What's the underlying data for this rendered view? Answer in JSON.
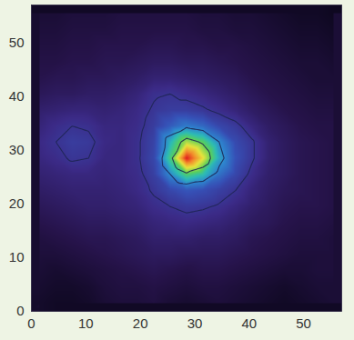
{
  "chart_data": {
    "type": "heatmap",
    "x": [
      1.5,
      4.5,
      7.5,
      10.5,
      13.5,
      16.5,
      19.5,
      22.5,
      25.5,
      28.5,
      31.5,
      34.5,
      37.5,
      40.5,
      43.5,
      46.5,
      49.5,
      52.5,
      55.5
    ],
    "y": [
      1.5,
      4.5,
      7.5,
      10.5,
      13.5,
      16.5,
      19.5,
      22.5,
      25.5,
      28.5,
      31.5,
      34.5,
      37.5,
      40.5,
      43.5,
      46.5,
      49.5,
      52.5,
      55.5
    ],
    "z": [
      [
        6,
        5,
        5,
        6,
        8,
        9,
        9,
        10,
        8,
        7,
        8,
        9,
        8,
        7,
        6,
        5,
        6,
        7,
        8
      ],
      [
        7,
        6,
        6,
        7,
        9,
        10,
        10,
        11,
        10,
        9,
        10,
        10,
        9,
        8,
        7,
        6,
        7,
        8,
        8
      ],
      [
        8,
        7,
        8,
        9,
        10,
        11,
        12,
        13,
        12,
        11,
        12,
        12,
        11,
        10,
        9,
        8,
        8,
        9,
        9
      ],
      [
        9,
        9,
        10,
        11,
        12,
        13,
        14,
        15,
        15,
        14,
        14,
        14,
        13,
        12,
        11,
        10,
        9,
        9,
        9
      ],
      [
        10,
        11,
        12,
        13,
        13,
        14,
        15,
        17,
        17,
        17,
        16,
        16,
        15,
        13,
        12,
        11,
        10,
        10,
        9
      ],
      [
        12,
        13,
        14,
        15,
        15,
        16,
        17,
        19,
        20,
        21,
        20,
        19,
        17,
        15,
        14,
        12,
        11,
        11,
        10
      ],
      [
        14,
        15,
        16,
        17,
        17,
        18,
        19,
        22,
        24,
        26,
        25,
        23,
        20,
        17,
        15,
        13,
        12,
        12,
        11
      ],
      [
        16,
        17,
        18,
        18,
        18,
        19,
        21,
        25,
        30,
        34,
        32,
        28,
        24,
        19,
        16,
        14,
        13,
        12,
        11
      ],
      [
        18,
        19,
        20,
        20,
        19,
        20,
        22,
        28,
        45,
        62,
        55,
        40,
        30,
        22,
        17,
        15,
        13,
        12,
        11
      ],
      [
        20,
        22,
        25,
        24,
        20,
        20,
        23,
        30,
        60,
        100,
        78,
        50,
        33,
        25,
        18,
        15,
        13,
        12,
        11
      ],
      [
        21,
        24,
        27,
        26,
        21,
        20,
        23,
        29,
        52,
        72,
        63,
        45,
        31,
        25,
        18,
        15,
        13,
        12,
        11
      ],
      [
        19,
        22,
        24,
        23,
        20,
        20,
        22,
        27,
        35,
        42,
        38,
        30,
        26,
        20,
        16,
        14,
        12,
        11,
        11
      ],
      [
        17,
        18,
        19,
        19,
        18,
        19,
        21,
        25,
        27,
        27,
        25,
        22,
        19,
        16,
        14,
        12,
        11,
        10,
        10
      ],
      [
        14,
        15,
        15,
        16,
        16,
        17,
        19,
        23,
        24,
        22,
        20,
        18,
        16,
        14,
        12,
        11,
        10,
        9,
        9
      ],
      [
        12,
        13,
        13,
        14,
        14,
        15,
        16,
        18,
        18,
        17,
        16,
        15,
        14,
        12,
        11,
        10,
        9,
        8,
        8
      ],
      [
        11,
        11,
        12,
        12,
        13,
        13,
        14,
        15,
        15,
        14,
        14,
        13,
        12,
        11,
        10,
        9,
        8,
        8,
        7
      ],
      [
        10,
        10,
        11,
        11,
        12,
        12,
        12,
        13,
        13,
        12,
        12,
        11,
        11,
        10,
        9,
        8,
        7,
        7,
        6
      ],
      [
        9,
        9,
        10,
        10,
        10,
        11,
        11,
        11,
        11,
        11,
        10,
        10,
        9,
        9,
        8,
        7,
        6,
        6,
        5
      ],
      [
        8,
        8,
        9,
        9,
        9,
        10,
        10,
        10,
        10,
        10,
        9,
        9,
        8,
        8,
        7,
        6,
        5,
        5,
        4
      ]
    ],
    "contour_levels": [
      24,
      45,
      65
    ],
    "xlim": [
      0,
      57
    ],
    "ylim": [
      0,
      57
    ],
    "xticks": [
      0,
      10,
      20,
      30,
      40,
      50
    ],
    "yticks": [
      0,
      10,
      20,
      30,
      40,
      50
    ]
  }
}
